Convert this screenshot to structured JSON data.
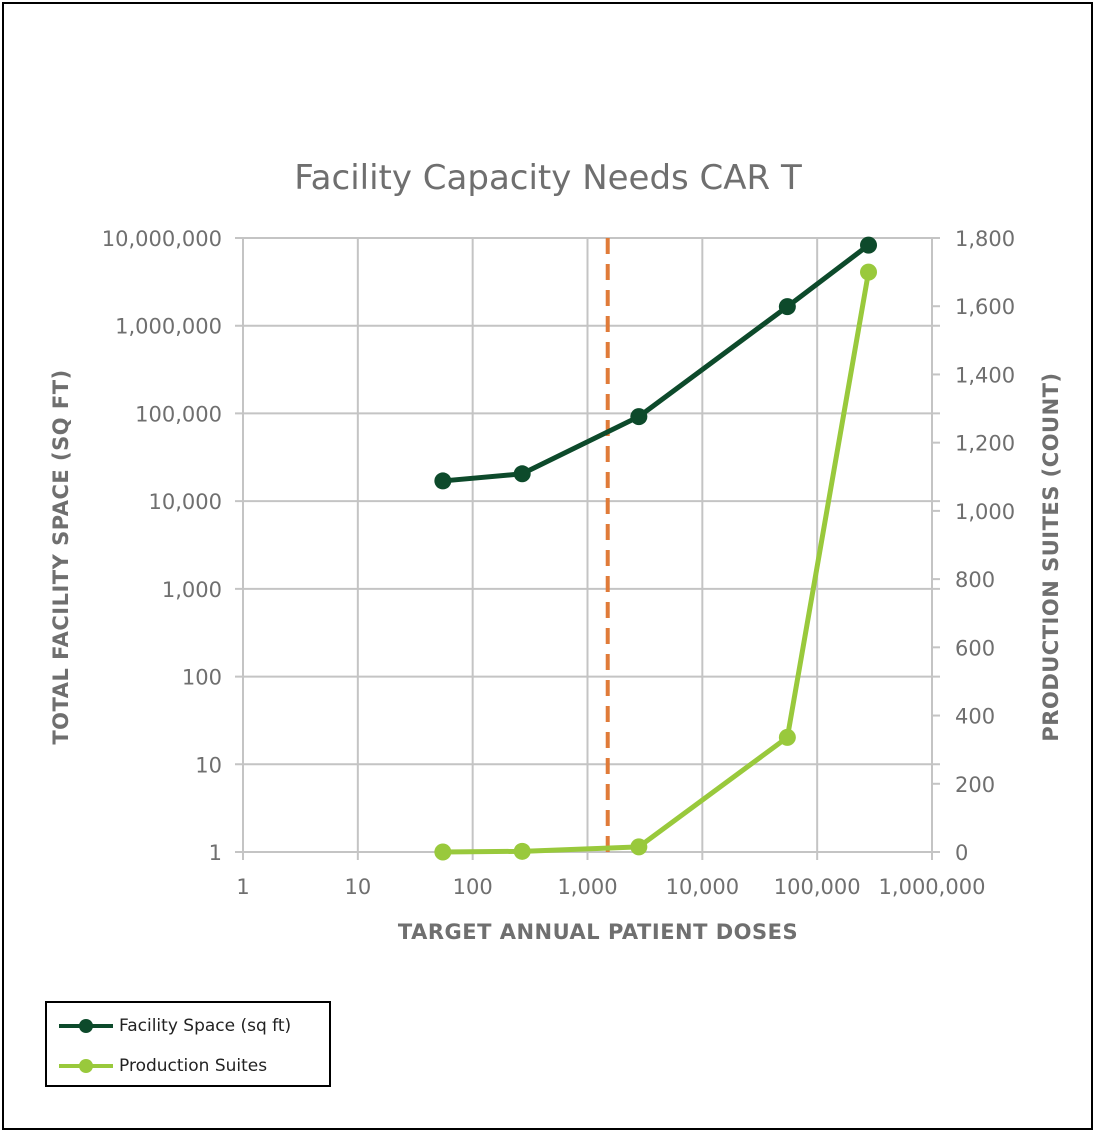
{
  "chart_data": {
    "type": "line",
    "title": "Facility Capacity Needs CAR T",
    "xlabel": "TARGET ANNUAL PATIENT DOSES",
    "ylabel_left": "TOTAL FACILITY SPACE (SQ FT)",
    "ylabel_right": "PRODUCTION SUITES (COUNT)",
    "x_scale": "log",
    "x_range": [
      1,
      1000000
    ],
    "x_ticks": [
      1,
      10,
      100,
      1000,
      10000,
      100000,
      1000000
    ],
    "x_tick_labels": [
      "1",
      "10",
      "100",
      "1,000",
      "10,000",
      "100,000",
      "1,000,000"
    ],
    "y_left_scale": "log",
    "y_left_range": [
      1,
      10000000
    ],
    "y_left_ticks": [
      1,
      10,
      100,
      1000,
      10000,
      100000,
      1000000,
      10000000
    ],
    "y_left_tick_labels": [
      "1",
      "10",
      "100",
      "1,000",
      "10,000",
      "100,000",
      "1,000,000",
      "10,000,000"
    ],
    "y_right_scale": "linear",
    "y_right_range": [
      0,
      1800
    ],
    "y_right_ticks": [
      0,
      200,
      400,
      600,
      800,
      1000,
      1200,
      1400,
      1600,
      1800
    ],
    "y_right_tick_labels": [
      "0",
      "200",
      "400",
      "600",
      "800",
      "1,000",
      "1,200",
      "1,400",
      "1,600",
      "1,800"
    ],
    "grid": true,
    "legend_position": "bottom-left",
    "reference_line": {
      "x": 1500,
      "color": "#e07b39",
      "style": "dashed"
    },
    "series": [
      {
        "name": "Facility Space (sq ft)",
        "axis": "left",
        "color": "#0d4a2b",
        "x": [
          55,
          270,
          2800,
          55000,
          280000
        ],
        "y": [
          17000,
          20500,
          92000,
          1650000,
          8300000
        ]
      },
      {
        "name": "Production Suites",
        "axis": "right",
        "color": "#99c93c",
        "x": [
          55,
          270,
          2800,
          55000,
          280000
        ],
        "y": [
          0,
          2,
          15,
          336,
          1700
        ]
      }
    ]
  }
}
